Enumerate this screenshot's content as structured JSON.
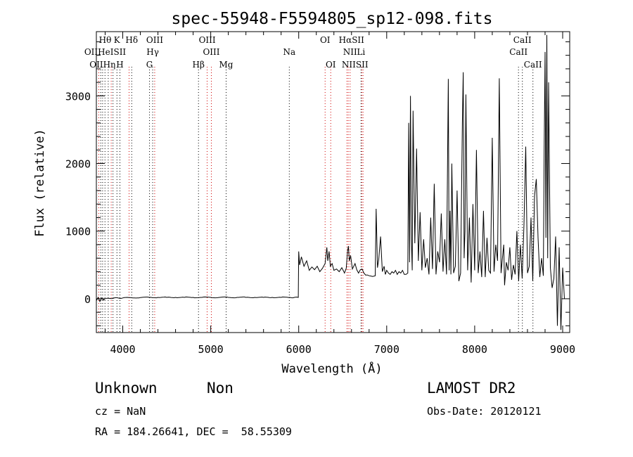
{
  "chart_data": {
    "type": "line",
    "title": "spec-55948-F5594805_sp12-098.fits",
    "xlabel": "Wavelength (Å)",
    "ylabel": "Flux (relative)",
    "xlim": [
      3700,
      9080
    ],
    "ylim": [
      -500,
      3950
    ],
    "grid": false,
    "x_ticks": [
      4000,
      5000,
      6000,
      7000,
      8000,
      9000
    ],
    "y_ticks": [
      0,
      1000,
      2000,
      3000
    ],
    "series": [
      {
        "x": [
          3700,
          3720,
          3740,
          3760,
          3780,
          3800,
          3850,
          3900,
          3950,
          4000,
          4100,
          4200,
          4300,
          4400,
          4500,
          4600,
          4700,
          4800,
          4900,
          5000,
          5100,
          5200,
          5300,
          5400,
          5500,
          5600,
          5700,
          5800,
          5900,
          5950,
          5995,
          6000,
          6010,
          6030,
          6060,
          6090,
          6120,
          6150,
          6180,
          6210,
          6240,
          6270,
          6300,
          6320,
          6330,
          6345,
          6360,
          6380,
          6400,
          6430,
          6460,
          6490,
          6520,
          6540,
          6555,
          6565,
          6575,
          6590,
          6610,
          6640,
          6680,
          6720,
          6760,
          6800,
          6840,
          6870,
          6880,
          6895,
          6910,
          6930,
          6950,
          6970,
          6985,
          7000,
          7020,
          7040,
          7060,
          7080,
          7100,
          7120,
          7140,
          7160,
          7180,
          7200,
          7220,
          7240,
          7250,
          7260,
          7270,
          7280,
          7290,
          7300,
          7320,
          7340,
          7360,
          7380,
          7400,
          7420,
          7440,
          7460,
          7480,
          7500,
          7520,
          7540,
          7560,
          7580,
          7600,
          7620,
          7640,
          7660,
          7680,
          7700,
          7710,
          7720,
          7730,
          7740,
          7760,
          7780,
          7800,
          7820,
          7840,
          7860,
          7870,
          7880,
          7890,
          7900,
          7920,
          7940,
          7960,
          7980,
          8000,
          8020,
          8040,
          8060,
          8080,
          8100,
          8120,
          8140,
          8160,
          8180,
          8200,
          8220,
          8240,
          8260,
          8280,
          8300,
          8320,
          8330,
          8340,
          8360,
          8380,
          8400,
          8420,
          8440,
          8460,
          8480,
          8500,
          8520,
          8540,
          8560,
          8580,
          8600,
          8620,
          8640,
          8660,
          8680,
          8700,
          8720,
          8740,
          8760,
          8780,
          8790,
          8800,
          8810,
          8820,
          8830,
          8840,
          8860,
          8880,
          8900,
          8920,
          8940,
          8960,
          8980,
          9000,
          9020
        ],
        "y": [
          -30,
          20,
          -40,
          10,
          -20,
          0,
          5,
          10,
          10,
          12,
          15,
          18,
          20,
          20,
          20,
          20,
          20,
          20,
          20,
          20,
          20,
          20,
          20,
          20,
          20,
          20,
          20,
          20,
          20,
          20,
          20,
          700,
          500,
          620,
          480,
          560,
          420,
          470,
          430,
          480,
          400,
          450,
          520,
          760,
          560,
          700,
          480,
          520,
          420,
          440,
          400,
          460,
          380,
          450,
          700,
          780,
          560,
          640,
          440,
          520,
          380,
          440,
          350,
          340,
          330,
          340,
          1330,
          460,
          580,
          920,
          400,
          480,
          360,
          420,
          380,
          360,
          400,
          380,
          420,
          360,
          400,
          380,
          420,
          360,
          360,
          380,
          2600,
          540,
          3000,
          900,
          420,
          2780,
          820,
          2220,
          560,
          1280,
          420,
          880,
          460,
          600,
          360,
          1200,
          440,
          1700,
          360,
          700,
          540,
          1260,
          400,
          880,
          360,
          3250,
          420,
          1300,
          360,
          2000,
          380,
          480,
          1600,
          260,
          380,
          2600,
          3350,
          600,
          1000,
          3020,
          420,
          1200,
          240,
          1400,
          420,
          2200,
          380,
          700,
          320,
          1300,
          320,
          900,
          420,
          380,
          2380,
          400,
          800,
          560,
          3260,
          380,
          660,
          800,
          200,
          540,
          420,
          760,
          280,
          500,
          360,
          1000,
          260,
          800,
          300,
          1100,
          2250,
          380,
          480,
          1200,
          260,
          1520,
          1770,
          900,
          320,
          600,
          340,
          2200,
          3650,
          900,
          3900,
          600,
          3200,
          460,
          160,
          300,
          920,
          -400,
          760,
          -460,
          460,
          0
        ],
        "color": "#000000"
      }
    ],
    "line_markers": {
      "color_absorption": "#000000",
      "color_emission": "#d00000",
      "rows": [
        [
          {
            "label": "Hθ",
            "x": 3800
          },
          {
            "label": "K",
            "x": 3934
          },
          {
            "label": "Hδ",
            "x": 4102
          },
          {
            "label": "OIII",
            "x": 4363
          },
          {
            "label": "OIII",
            "x": 4960
          },
          {
            "label": "OI",
            "x": 6300
          },
          {
            "label": "HαSII",
            "x": 6600
          },
          {
            "label": "CaII",
            "x": 8542
          }
        ],
        [
          {
            "label": "OIIHeISII",
            "x": 3800
          },
          {
            "label": "Hγ",
            "x": 4340
          },
          {
            "label": "OIII",
            "x": 5007
          },
          {
            "label": "Na",
            "x": 5893
          },
          {
            "label": "NII",
            "x": 6584
          },
          {
            "label": "Li",
            "x": 6708
          },
          {
            "label": "CaII",
            "x": 8498
          }
        ],
        [
          {
            "label": "OIIHη",
            "x": 3770
          },
          {
            "label": "H",
            "x": 3968
          },
          {
            "label": "G",
            "x": 4304
          },
          {
            "label": "Hβ",
            "x": 4861
          },
          {
            "label": "Mg",
            "x": 5175
          },
          {
            "label": "OI",
            "x": 6364
          },
          {
            "label": "NIISII",
            "x": 6640
          },
          {
            "label": "CaII",
            "x": 8662
          }
        ]
      ],
      "lines": [
        {
          "x": 3727,
          "kind": "emission"
        },
        {
          "x": 3750,
          "kind": "absorption"
        },
        {
          "x": 3771,
          "kind": "absorption"
        },
        {
          "x": 3798,
          "kind": "absorption"
        },
        {
          "x": 3835,
          "kind": "absorption"
        },
        {
          "x": 3869,
          "kind": "emission"
        },
        {
          "x": 3889,
          "kind": "absorption"
        },
        {
          "x": 3934,
          "kind": "absorption"
        },
        {
          "x": 3968,
          "kind": "absorption"
        },
        {
          "x": 4072,
          "kind": "emission"
        },
        {
          "x": 4102,
          "kind": "absorption"
        },
        {
          "x": 4304,
          "kind": "absorption"
        },
        {
          "x": 4340,
          "kind": "absorption"
        },
        {
          "x": 4363,
          "kind": "emission"
        },
        {
          "x": 4861,
          "kind": "absorption"
        },
        {
          "x": 4959,
          "kind": "emission"
        },
        {
          "x": 5007,
          "kind": "emission"
        },
        {
          "x": 5175,
          "kind": "absorption"
        },
        {
          "x": 5893,
          "kind": "absorption"
        },
        {
          "x": 6300,
          "kind": "emission"
        },
        {
          "x": 6364,
          "kind": "emission"
        },
        {
          "x": 6548,
          "kind": "emission"
        },
        {
          "x": 6563,
          "kind": "emission"
        },
        {
          "x": 6584,
          "kind": "emission"
        },
        {
          "x": 6708,
          "kind": "absorption"
        },
        {
          "x": 6717,
          "kind": "emission"
        },
        {
          "x": 6731,
          "kind": "emission"
        },
        {
          "x": 8498,
          "kind": "absorption"
        },
        {
          "x": 8542,
          "kind": "absorption"
        },
        {
          "x": 8662,
          "kind": "absorption"
        }
      ]
    }
  },
  "info": {
    "class": "Unknown",
    "subclass": "Non",
    "survey": "LAMOST DR2",
    "cz": "cz = NaN",
    "obs_date": "Obs-Date: 20120121",
    "coords": "RA = 184.26641, DEC =  58.55309"
  }
}
